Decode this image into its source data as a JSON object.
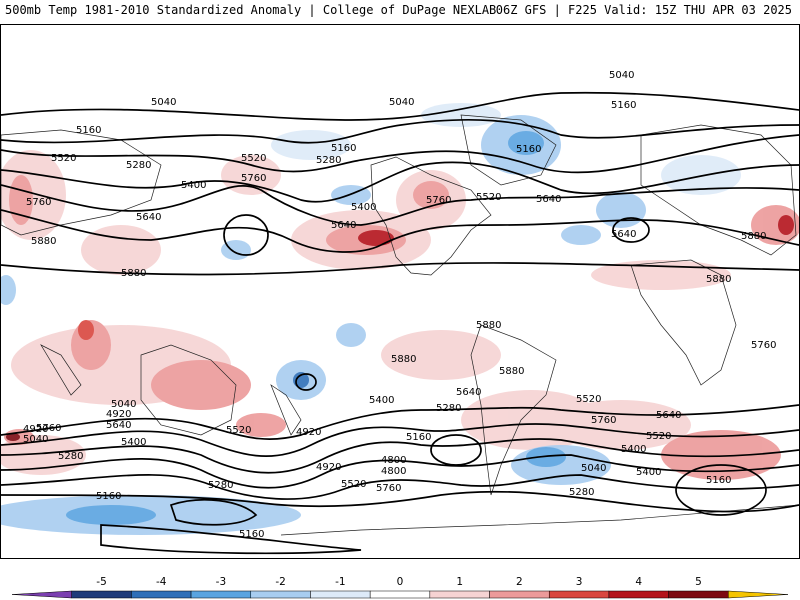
{
  "header": {
    "left": "500mb Temp 1981-2010 Standardized Anomaly | College of DuPage NEXLAB",
    "right": "06Z GFS | F225 Valid: 15Z THU APR 03 2025"
  },
  "colorbar": {
    "ticks": [
      "-5",
      "-4",
      "-3",
      "-2",
      "-1",
      "0",
      "1",
      "2",
      "3",
      "4",
      "5"
    ],
    "colors": [
      "#7b3fb0",
      "#1f3b7a",
      "#2f6fb8",
      "#5aa4e0",
      "#a8cdf0",
      "#ddeaf8",
      "#ffffff",
      "#f6d3d3",
      "#ec9a9a",
      "#d9473f",
      "#b4141c",
      "#7d0a12",
      "#f5c400"
    ]
  },
  "contour_labels": [
    {
      "id": "l1",
      "text": "5040"
    },
    {
      "id": "l2",
      "text": "5040"
    },
    {
      "id": "l3",
      "text": "5040"
    },
    {
      "id": "l4",
      "text": "5160"
    },
    {
      "id": "l5",
      "text": "5160"
    },
    {
      "id": "l6",
      "text": "5160"
    },
    {
      "id": "l7",
      "text": "5520"
    },
    {
      "id": "l8",
      "text": "5280"
    },
    {
      "id": "l9",
      "text": "5400"
    },
    {
      "id": "l10",
      "text": "5520"
    },
    {
      "id": "l11",
      "text": "5760"
    },
    {
      "id": "l12",
      "text": "5280"
    },
    {
      "id": "l13",
      "text": "5160"
    },
    {
      "id": "l14",
      "text": "5400"
    },
    {
      "id": "l15",
      "text": "5760"
    },
    {
      "id": "l16",
      "text": "5520"
    },
    {
      "id": "l17",
      "text": "5640"
    },
    {
      "id": "l18",
      "text": "5640"
    },
    {
      "id": "l19",
      "text": "5760"
    },
    {
      "id": "l20",
      "text": "5640"
    },
    {
      "id": "l21",
      "text": "5880"
    },
    {
      "id": "l22",
      "text": "5880"
    },
    {
      "id": "l23",
      "text": "5880"
    },
    {
      "id": "l24",
      "text": "5880"
    },
    {
      "id": "l25",
      "text": "5880"
    },
    {
      "id": "l26",
      "text": "5880"
    },
    {
      "id": "l27",
      "text": "5880"
    },
    {
      "id": "l28",
      "text": "5760"
    },
    {
      "id": "l29",
      "text": "5640"
    },
    {
      "id": "l30",
      "text": "5400"
    },
    {
      "id": "l31",
      "text": "5280"
    },
    {
      "id": "l32",
      "text": "5160"
    },
    {
      "id": "l33",
      "text": "5520"
    },
    {
      "id": "l34",
      "text": "5760"
    },
    {
      "id": "l35",
      "text": "5640"
    },
    {
      "id": "l36",
      "text": "5520"
    },
    {
      "id": "l37",
      "text": "5400"
    },
    {
      "id": "l38",
      "text": "5400"
    },
    {
      "id": "l39",
      "text": "5280"
    },
    {
      "id": "l40",
      "text": "5160"
    },
    {
      "id": "l41",
      "text": "5040"
    },
    {
      "id": "l42",
      "text": "4920"
    },
    {
      "id": "l43",
      "text": "5640"
    },
    {
      "id": "l44",
      "text": "5400"
    },
    {
      "id": "l45",
      "text": "5280"
    },
    {
      "id": "l46",
      "text": "5160"
    },
    {
      "id": "l47",
      "text": "5040"
    },
    {
      "id": "l48",
      "text": "4920"
    },
    {
      "id": "l49",
      "text": "5760"
    },
    {
      "id": "l50",
      "text": "5520"
    },
    {
      "id": "l51",
      "text": "4920"
    },
    {
      "id": "l52",
      "text": "4920"
    },
    {
      "id": "l53",
      "text": "4800"
    },
    {
      "id": "l54",
      "text": "4800"
    },
    {
      "id": "l55",
      "text": "5760"
    },
    {
      "id": "l56",
      "text": "5520"
    },
    {
      "id": "l57",
      "text": "5280"
    },
    {
      "id": "l58",
      "text": "5160"
    },
    {
      "id": "l59",
      "text": "5040"
    },
    {
      "id": "l60",
      "text": "5640"
    }
  ]
}
